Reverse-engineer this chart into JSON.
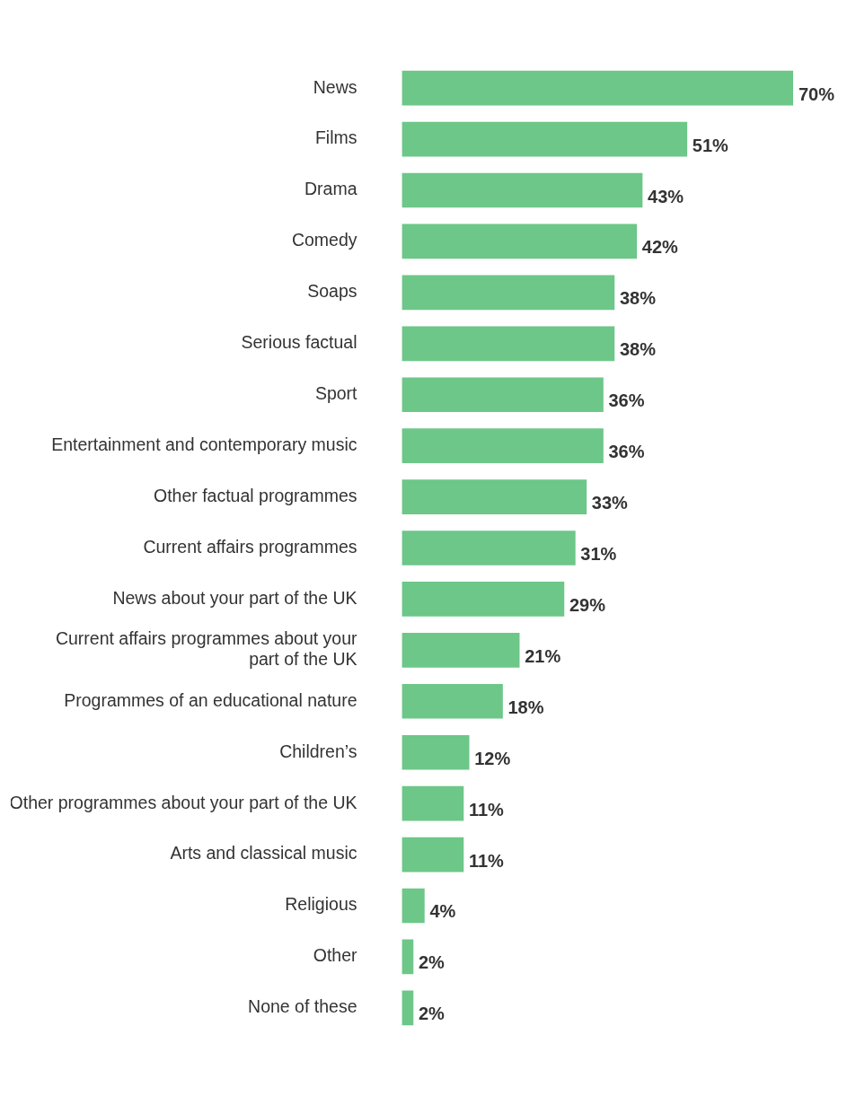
{
  "chart_data": {
    "type": "bar",
    "orientation": "horizontal",
    "categories": [
      "News",
      "Films",
      "Drama",
      "Comedy",
      "Soaps",
      "Serious factual",
      "Sport",
      "Entertainment and contemporary music",
      "Other factual programmes",
      "Current affairs programmes",
      "News about your part of the UK",
      "Current affairs programmes about your part of the UK",
      "Programmes of an educational nature",
      "Children’s",
      "Other programmes about your part of the UK",
      "Arts and classical music",
      "Religious",
      "Other",
      "None of these"
    ],
    "values": [
      70,
      51,
      43,
      42,
      38,
      38,
      36,
      36,
      33,
      31,
      29,
      21,
      18,
      12,
      11,
      11,
      4,
      2,
      2
    ],
    "value_labels": [
      "70%",
      "51%",
      "43%",
      "42%",
      "38%",
      "38%",
      "36%",
      "36%",
      "33%",
      "31%",
      "29%",
      "21%",
      "18%",
      "12%",
      "11%",
      "11%",
      "4%",
      "2%",
      "2%"
    ],
    "color": "#6dc788"
  }
}
